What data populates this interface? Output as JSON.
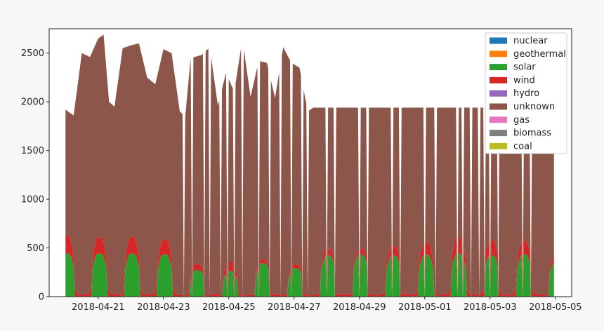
{
  "chart_data": {
    "type": "area",
    "stacked": true,
    "title": "",
    "xlabel": "",
    "ylabel": "",
    "x_range": [
      "2018-04-19T12:00",
      "2018-05-05T12:00"
    ],
    "ylim": [
      0,
      2750
    ],
    "y_ticks": [
      0,
      500,
      1000,
      1500,
      2000,
      2500
    ],
    "x_ticks": [
      "2018-04-21",
      "2018-04-23",
      "2018-04-25",
      "2018-04-27",
      "2018-04-29",
      "2018-05-01",
      "2018-05-03",
      "2018-05-05"
    ],
    "grid": false,
    "legend_position": "top-right",
    "data_end": "2018-05-04T23:00",
    "series": [
      {
        "name": "nuclear",
        "color": "#1f77b4",
        "values": "0 throughout"
      },
      {
        "name": "geothermal",
        "color": "#ff7f0e",
        "values": "0 throughout"
      },
      {
        "name": "solar",
        "color": "#2ca02c",
        "daily_peaks": [
          [
            "2018-04-20",
            440
          ],
          [
            "2018-04-21",
            440
          ],
          [
            "2018-04-22",
            440
          ],
          [
            "2018-04-23",
            430
          ],
          [
            "2018-04-24",
            270
          ],
          [
            "2018-04-25",
            260
          ],
          [
            "2018-04-26",
            340
          ],
          [
            "2018-04-27",
            290
          ],
          [
            "2018-04-28",
            420
          ],
          [
            "2018-04-29",
            430
          ],
          [
            "2018-04-30",
            420
          ],
          [
            "2018-05-01",
            430
          ],
          [
            "2018-05-02",
            440
          ],
          [
            "2018-05-03",
            420
          ],
          [
            "2018-05-04",
            430
          ],
          [
            "2018-05-05",
            350
          ]
        ]
      },
      {
        "name": "wind",
        "color": "#d62728",
        "daily_peaks_stacked": [
          [
            "2018-04-20",
            600
          ],
          [
            "2018-04-21",
            590
          ],
          [
            "2018-04-22",
            590
          ],
          [
            "2018-04-23",
            570
          ],
          [
            "2018-04-24",
            310
          ],
          [
            "2018-04-25",
            340
          ],
          [
            "2018-04-26",
            360
          ],
          [
            "2018-04-27",
            310
          ],
          [
            "2018-04-28",
            470
          ],
          [
            "2018-04-29",
            470
          ],
          [
            "2018-04-30",
            510
          ],
          [
            "2018-05-01",
            540
          ],
          [
            "2018-05-02",
            600
          ],
          [
            "2018-05-03",
            560
          ],
          [
            "2018-05-04",
            560
          ],
          [
            "2018-05-05",
            390
          ]
        ]
      },
      {
        "name": "hydro",
        "color": "#9467bd",
        "values": "0 throughout"
      },
      {
        "name": "unknown",
        "color": "#8c564b",
        "total_profile": [
          [
            "2018-04-19T12:00",
            2430
          ],
          [
            "2018-04-19T18:00",
            2480
          ],
          [
            "2018-04-20T00:00",
            1920
          ],
          [
            "2018-04-20T06:00",
            1860
          ],
          [
            "2018-04-20T12:00",
            2500
          ],
          [
            "2018-04-20T18:00",
            2460
          ],
          [
            "2018-04-21T00:00",
            2650
          ],
          [
            "2018-04-21T04:00",
            2690
          ],
          [
            "2018-04-21T08:00",
            2000
          ],
          [
            "2018-04-21T12:00",
            1950
          ],
          [
            "2018-04-21T18:00",
            2550
          ],
          [
            "2018-04-22T00:00",
            2580
          ],
          [
            "2018-04-22T06:00",
            2600
          ],
          [
            "2018-04-22T12:00",
            2250
          ],
          [
            "2018-04-22T18:00",
            2180
          ],
          [
            "2018-04-23T00:00",
            2540
          ],
          [
            "2018-04-23T06:00",
            2500
          ],
          [
            "2018-04-23T12:00",
            1900
          ],
          [
            "2018-04-23T16:00",
            1850
          ],
          [
            "2018-04-23T20:00",
            2450
          ],
          [
            "2018-04-24T04:00",
            2480
          ],
          [
            "2018-04-24T10:00",
            2560
          ],
          [
            "2018-04-24T16:00",
            1960
          ],
          [
            "2018-04-24T22:00",
            2300
          ],
          [
            "2018-04-25T04:00",
            2100
          ],
          [
            "2018-04-25T10:00",
            2640
          ],
          [
            "2018-04-25T16:00",
            2050
          ],
          [
            "2018-04-25T22:00",
            2420
          ],
          [
            "2018-04-26T04:00",
            2400
          ],
          [
            "2018-04-26T10:00",
            2040
          ],
          [
            "2018-04-26T16:00",
            2560
          ],
          [
            "2018-04-26T22:00",
            2400
          ],
          [
            "2018-04-27T04:00",
            2350
          ],
          [
            "2018-04-27T10:00",
            1900
          ],
          [
            "2018-04-27T14:00",
            1940
          ],
          [
            "2018-05-04T23:00",
            1940
          ]
        ]
      },
      {
        "name": "gas",
        "color": "#e377c2",
        "values": "0 throughout"
      },
      {
        "name": "biomass",
        "color": "#7f7f7f",
        "values": "0 throughout"
      },
      {
        "name": "coal",
        "color": "#bcbd22",
        "values": "0 throughout"
      }
    ]
  }
}
